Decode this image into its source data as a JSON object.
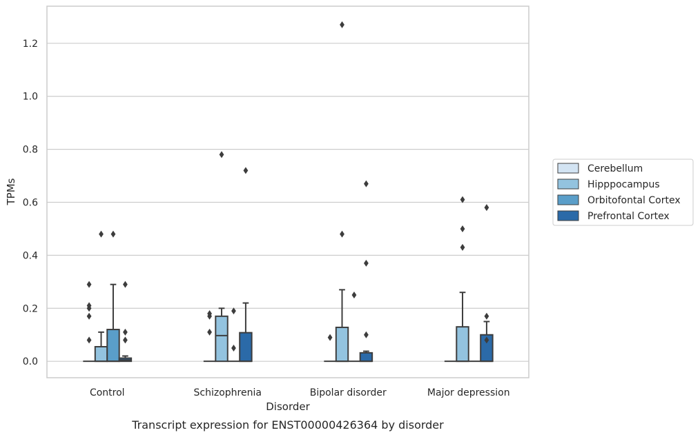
{
  "caption": "Transcript expression for ENST00000426364 by disorder",
  "chart_data": {
    "type": "box",
    "xlabel": "Disorder",
    "ylabel": "TPMs",
    "ylim": [
      -0.062,
      1.34
    ],
    "yticks": [
      0.0,
      0.2,
      0.4,
      0.6,
      0.8,
      1.0,
      1.2
    ],
    "ytick_labels": [
      "0.0",
      "0.2",
      "0.4",
      "0.6",
      "0.8",
      "1.0",
      "1.2"
    ],
    "grid": "horizontal",
    "legend_position": "right",
    "categories": [
      "Control",
      "Schizophrenia",
      "Bipolar disorder",
      "Major depression"
    ],
    "series": [
      {
        "name": "Cerebellum",
        "color": "#d3e4f3",
        "boxes": [
          {
            "q1": 0,
            "median": 0,
            "q3": 0,
            "whisker_low": 0,
            "whisker_high": 0,
            "outliers": [
              0.08,
              0.17,
              0.2,
              0.21,
              0.29
            ]
          },
          {
            "q1": 0,
            "median": 0,
            "q3": 0,
            "whisker_low": 0,
            "whisker_high": 0,
            "outliers": [
              0.11,
              0.17,
              0.18
            ]
          },
          {
            "q1": 0,
            "median": 0,
            "q3": 0,
            "whisker_low": 0,
            "whisker_high": 0,
            "outliers": [
              0.09
            ]
          },
          {
            "q1": 0,
            "median": 0,
            "q3": 0,
            "whisker_low": 0,
            "whisker_high": 0,
            "outliers": []
          }
        ]
      },
      {
        "name": "Hipppocampus",
        "color": "#93c3df",
        "boxes": [
          {
            "q1": 0,
            "median": 0,
            "q3": 0.055,
            "whisker_low": 0,
            "whisker_high": 0.11,
            "outliers": [
              0.48
            ]
          },
          {
            "q1": 0,
            "median": 0.097,
            "q3": 0.17,
            "whisker_low": 0,
            "whisker_high": 0.2,
            "outliers": [
              0.78
            ]
          },
          {
            "q1": 0,
            "median": 0,
            "q3": 0.128,
            "whisker_low": 0,
            "whisker_high": 0.27,
            "outliers": [
              0.48,
              1.27
            ]
          },
          {
            "q1": 0,
            "median": 0,
            "q3": 0.13,
            "whisker_low": 0,
            "whisker_high": 0.26,
            "outliers": [
              0.43,
              0.5,
              0.61
            ]
          }
        ]
      },
      {
        "name": "Orbitofontal Cortex",
        "color": "#5a9ec9",
        "boxes": [
          {
            "q1": 0,
            "median": 0,
            "q3": 0.12,
            "whisker_low": 0,
            "whisker_high": 0.29,
            "outliers": [
              0.48
            ]
          },
          {
            "q1": 0,
            "median": 0,
            "q3": 0,
            "whisker_low": 0,
            "whisker_high": 0,
            "outliers": [
              0.05,
              0.19
            ]
          },
          {
            "q1": 0,
            "median": 0,
            "q3": 0,
            "whisker_low": 0,
            "whisker_high": 0,
            "outliers": [
              0.25
            ]
          },
          {
            "q1": 0,
            "median": 0,
            "q3": 0,
            "whisker_low": 0,
            "whisker_high": 0,
            "outliers": []
          }
        ]
      },
      {
        "name": "Prefrontal Cortex",
        "color": "#2b6aa8",
        "boxes": [
          {
            "q1": 0,
            "median": 0.005,
            "q3": 0.012,
            "whisker_low": 0,
            "whisker_high": 0.02,
            "outliers": [
              0.08,
              0.11,
              0.29
            ]
          },
          {
            "q1": 0,
            "median": 0,
            "q3": 0.108,
            "whisker_low": 0,
            "whisker_high": 0.22,
            "outliers": [
              0.72
            ]
          },
          {
            "q1": 0,
            "median": 0,
            "q3": 0.032,
            "whisker_low": 0,
            "whisker_high": 0.038,
            "outliers": [
              0.1,
              0.37,
              0.67
            ]
          },
          {
            "q1": 0,
            "median": 0,
            "q3": 0.1,
            "whisker_low": 0,
            "whisker_high": 0.15,
            "outliers": [
              0.08,
              0.17,
              0.58
            ]
          }
        ]
      }
    ]
  },
  "colors": {
    "grid": "#cccccc",
    "frame": "#cccccc",
    "box_edge": "#3d3d3d",
    "text": "#262626"
  }
}
